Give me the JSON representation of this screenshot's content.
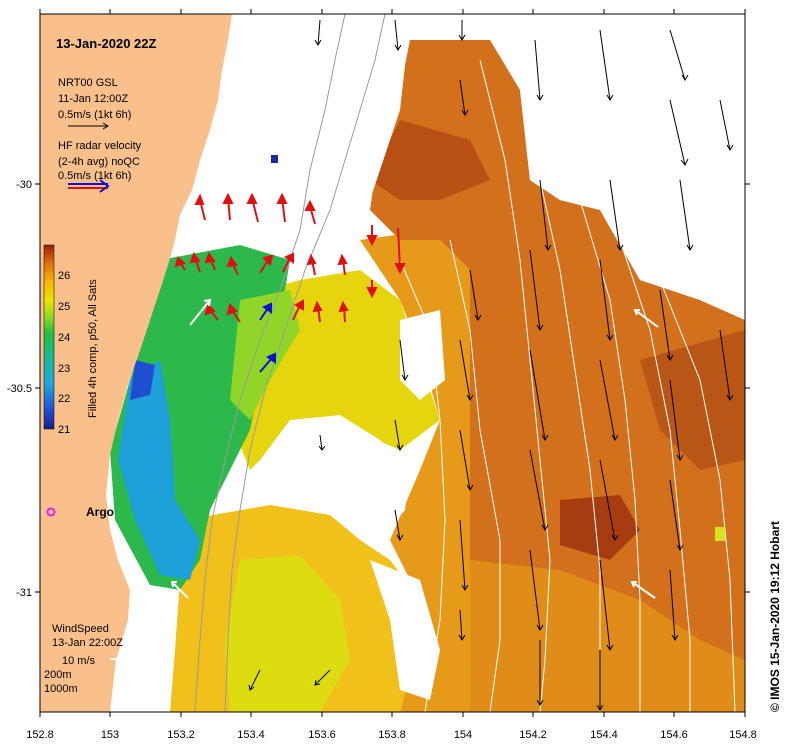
{
  "title": "13-Jan-2020 22Z",
  "legend": {
    "gsl_title": "NRT00 GSL",
    "gsl_date": "11-Jan 12:00Z",
    "gsl_scale": "0.5m/s (1kt 6h)",
    "hf_title": "HF radar velocity",
    "hf_sub": "(2-4h avg) noQC",
    "hf_scale": "0.5m/s (1kt 6h)",
    "wind_title": "WindSpeed",
    "wind_date": "13-Jan 22:00Z",
    "wind_scale": "10 m/s",
    "contour1": "200m",
    "contour2": "1000m",
    "argo": "Argo"
  },
  "colorbar": {
    "label": "Filled 4h comp, p50, All Sats",
    "ticks": [
      "21",
      "22",
      "23",
      "24",
      "25",
      "26"
    ]
  },
  "axes": {
    "x_ticks": [
      "152.8",
      "153",
      "153.2",
      "153.4",
      "153.6",
      "153.8",
      "154",
      "154.2",
      "154.4",
      "154.6",
      "154.8"
    ],
    "y_ticks": [
      "-30",
      "-30.5",
      "-31"
    ]
  },
  "credit": "© IMOS 15-Jan-2020 19:12 Hobart",
  "colors": {
    "land": "#f9c08c",
    "hf_arrow": "#e01010",
    "hf_arrow_blue": "#1010d0",
    "argo": "#e020e0"
  }
}
